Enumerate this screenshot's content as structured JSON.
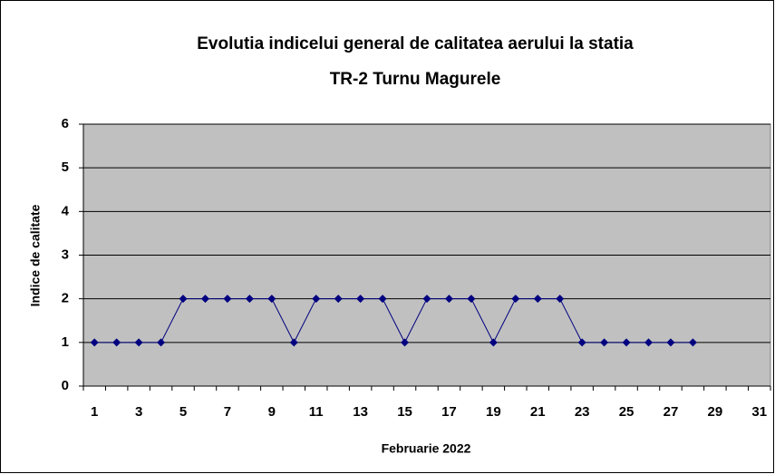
{
  "chart_data": {
    "type": "line",
    "title": [
      "Evolutia indicelui general de calitatea aerului la statia",
      "TR-2 Turnu Magurele"
    ],
    "x_label": "Februarie 2022",
    "y_label": "Indice de calitate",
    "categories": [
      "1",
      null,
      "3",
      null,
      "5",
      null,
      "7",
      null,
      "9",
      null,
      "11",
      null,
      "13",
      null,
      "15",
      null,
      "17",
      null,
      "19",
      null,
      "21",
      null,
      "23",
      null,
      "25",
      null,
      "27",
      null,
      "29",
      null,
      "31"
    ],
    "series": [
      {
        "name": "Indice de calitate",
        "color": "#000080",
        "values": [
          1,
          1,
          1,
          1,
          2,
          2,
          2,
          2,
          2,
          1,
          2,
          2,
          2,
          2,
          1,
          2,
          2,
          2,
          1,
          2,
          2,
          2,
          1,
          1,
          1,
          1,
          1,
          1,
          null,
          null,
          null
        ]
      }
    ],
    "ylim": [
      0,
      6
    ],
    "yticks": [
      0,
      1,
      2,
      3,
      4,
      5,
      6
    ],
    "grid": true,
    "plot_background": "#c0c0c0"
  }
}
